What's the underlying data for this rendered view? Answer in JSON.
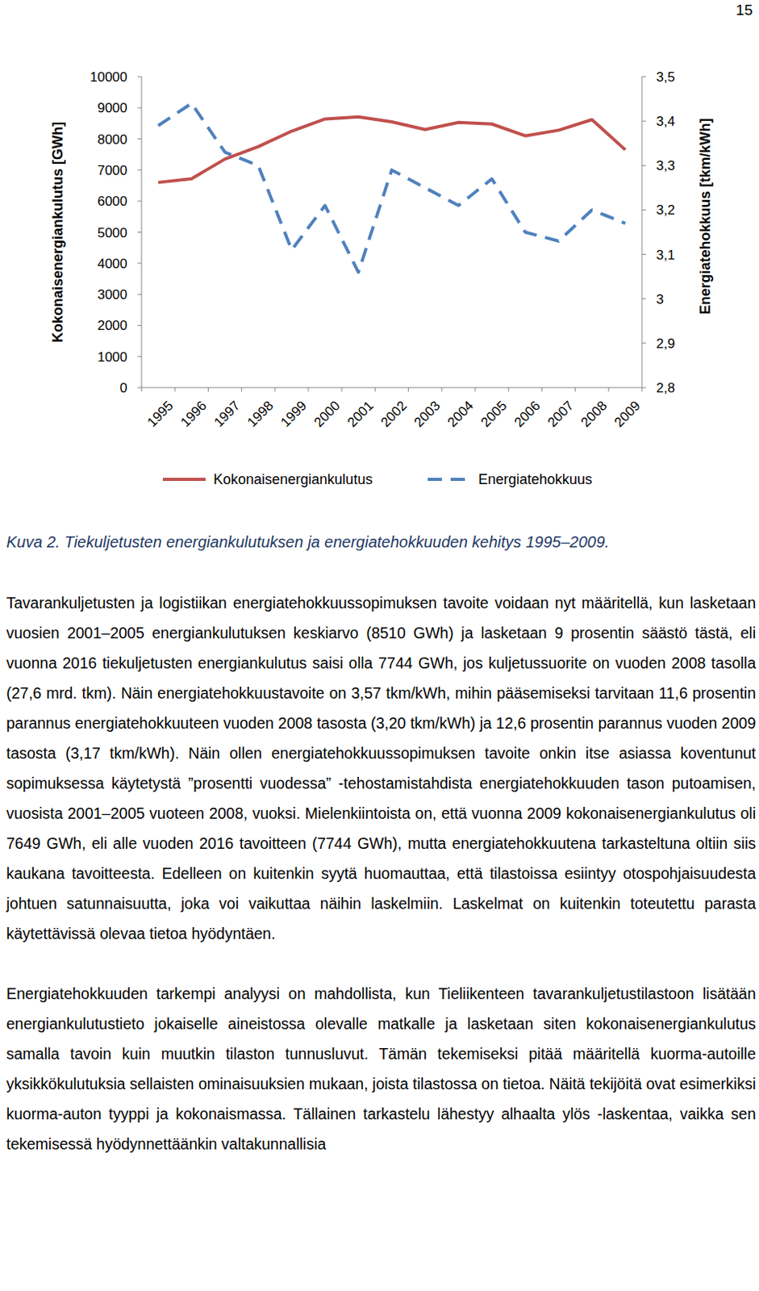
{
  "page": {
    "number": "15"
  },
  "chart_data": {
    "type": "line",
    "y_label": "Kokonaisenergiankulutus [GWh]",
    "y2_label": "Energiatehokkuus [tkm/kWh]",
    "categories": [
      "1995",
      "1996",
      "1997",
      "1998",
      "1999",
      "2000",
      "2001",
      "2002",
      "2003",
      "2004",
      "2005",
      "2006",
      "2007",
      "2008",
      "2009"
    ],
    "ylim": [
      0,
      10000
    ],
    "yticks": [
      0,
      1000,
      2000,
      3000,
      4000,
      5000,
      6000,
      7000,
      8000,
      9000,
      10000
    ],
    "y2lim": [
      2.8,
      3.5
    ],
    "y2ticks": [
      {
        "value": 2.8,
        "label": "2,8"
      },
      {
        "value": 2.9,
        "label": "2,9"
      },
      3,
      {
        "value": 3.1,
        "label": "3,1"
      },
      {
        "value": 3.2,
        "label": "3,2"
      },
      {
        "value": 3.3,
        "label": "3,3"
      },
      {
        "value": 3.4,
        "label": "3,4"
      },
      {
        "value": 3.5,
        "label": "3,5"
      }
    ],
    "grid": false,
    "legend": "bottom",
    "series": [
      {
        "name": "Kokonaisenergiankulutus",
        "color": "#c0504d",
        "line_style": "solid",
        "values": [
          6600,
          6720,
          7350,
          7750,
          8250,
          8640,
          8710,
          8550,
          8300,
          8530,
          8480,
          8100,
          8280,
          8620,
          7649
        ]
      },
      {
        "name": "Energiatehokkuus",
        "color": "#4f81bd",
        "line_style": "dashed",
        "axis": "y2",
        "values": [
          3.39,
          3.44,
          3.33,
          3.3,
          3.11,
          3.21,
          3.06,
          3.29,
          3.25,
          3.21,
          3.27,
          3.15,
          3.13,
          3.2,
          3.17
        ]
      }
    ]
  },
  "caption": "Kuva 2. Tiekuljetusten energiankulutuksen ja energiatehokkuuden kehitys 1995–2009.",
  "paragraphs": [
    "Tavarankuljetusten ja logistiikan energiatehokkuussopimuksen tavoite voidaan nyt määritellä, kun lasketaan vuosien 2001–2005 energiankulutuksen keskiarvo (8510 GWh) ja lasketaan 9 prosentin säästö tästä, eli vuonna 2016 tiekuljetusten energiankulutus saisi olla 7744 GWh, jos kuljetussuorite on vuoden 2008 tasolla (27,6 mrd. tkm). Näin energiatehokkuustavoite on 3,57 tkm/kWh, mihin pääsemiseksi tarvitaan 11,6 prosentin parannus energiatehokkuuteen vuoden 2008 tasosta (3,20 tkm/kWh) ja 12,6 prosentin parannus vuoden 2009 tasosta (3,17 tkm/kWh). Näin ollen energiatehokkuussopimuksen tavoite onkin itse asiassa koventunut sopimuksessa käytetystä ”prosentti vuodessa” -tehostamistahdista energiatehokkuuden tason putoamisen, vuosista 2001–2005 vuoteen 2008, vuoksi. Mielenkiintoista on, että vuonna 2009 kokonaisenergiankulutus oli 7649 GWh, eli alle vuoden 2016 tavoitteen (7744 GWh), mutta energiatehokkuutena tarkasteltuna oltiin siis kaukana tavoitteesta. Edelleen on kuitenkin syytä huomauttaa, että tilastoissa esiintyy otospohjaisuudesta johtuen satunnaisuutta, joka voi vaikuttaa näihin laskelmiin. Laskelmat on kuitenkin toteutettu parasta käytettävissä olevaa tietoa hyödyntäen.",
    "Energiatehokkuuden tarkempi analyysi on mahdollista, kun Tieliikenteen tavarankuljetustilastoon lisätään energiankulutustieto jokaiselle aineistossa olevalle matkalle ja lasketaan siten kokonaisenergiankulutus samalla tavoin kuin muutkin tilaston tunnusluvut. Tämän tekemiseksi pitää määritellä kuorma-autoille yksikkökulutuksia sellaisten ominaisuuksien mukaan, joista tilastossa on tietoa. Näitä tekijöitä ovat esimerkiksi kuorma-auton tyyppi ja kokonaismassa. Tällainen tarkastelu lähestyy alhaalta ylös -laskentaa, vaikka sen tekemisessä hyödynnettäänkin valtakunnallisia"
  ]
}
